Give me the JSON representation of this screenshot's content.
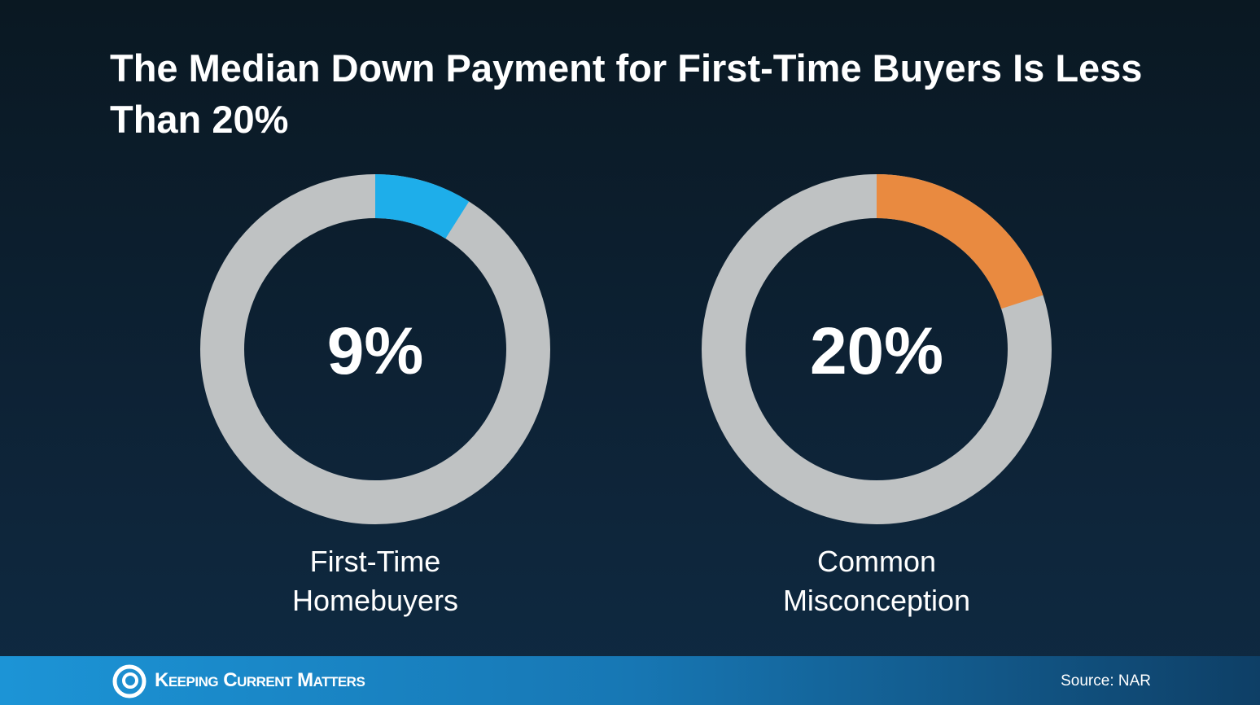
{
  "title": "The Median Down Payment for First-Time Buyers Is Less Than 20%",
  "chart_data": [
    {
      "type": "donut",
      "categories": [
        "First-Time Homebuyers"
      ],
      "values": [
        9
      ],
      "value_labels": [
        "9%"
      ],
      "color": "#1eaeea",
      "track_color": "#bfc2c3"
    },
    {
      "type": "donut",
      "categories": [
        "Common Misconception"
      ],
      "values": [
        20
      ],
      "value_labels": [
        "20%"
      ],
      "color": "#e98a40",
      "track_color": "#bfc2c3"
    }
  ],
  "footer": {
    "brand": "Keeping Current Matters",
    "source": "Source: NAR"
  }
}
